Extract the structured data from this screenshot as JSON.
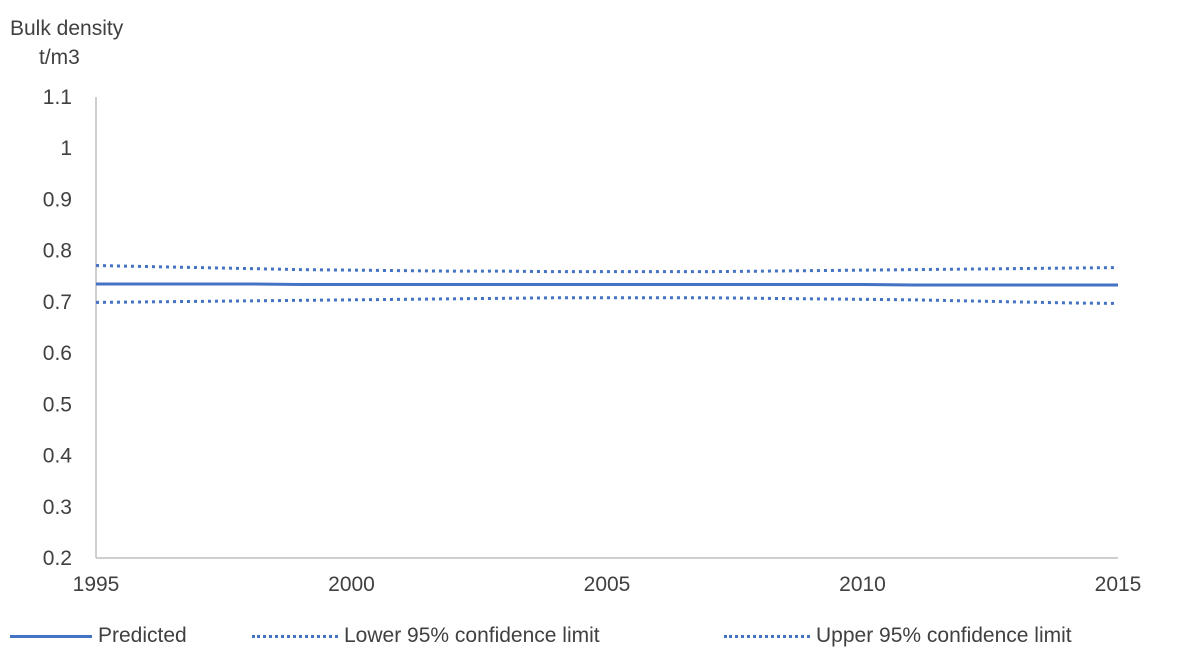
{
  "chart_data": {
    "type": "line",
    "ylabel": [
      "Bulk density",
      "t/m3"
    ],
    "xlabel": "",
    "x": [
      1995,
      1996,
      1997,
      1998,
      1999,
      2000,
      2001,
      2002,
      2003,
      2004,
      2005,
      2006,
      2007,
      2008,
      2009,
      2010,
      2011,
      2012,
      2013,
      2014,
      2015
    ],
    "x_ticks": [
      "1995",
      "2000",
      "2005",
      "2010",
      "2015"
    ],
    "xlim": [
      1995,
      2015
    ],
    "ylim": [
      0.2,
      1.1
    ],
    "y_ticks": [
      "0.2",
      "0.3",
      "0.4",
      "0.5",
      "0.6",
      "0.7",
      "0.8",
      "0.9",
      "1",
      "1.1"
    ],
    "grid": false,
    "legend_position": "bottom",
    "series": [
      {
        "name": "Predicted",
        "style": "solid",
        "color": "#4472c4",
        "values": [
          0.735,
          0.735,
          0.735,
          0.735,
          0.734,
          0.734,
          0.734,
          0.734,
          0.734,
          0.734,
          0.734,
          0.734,
          0.734,
          0.734,
          0.734,
          0.734,
          0.733,
          0.733,
          0.733,
          0.733,
          0.733
        ]
      },
      {
        "name": "Lower 95% confidence limit",
        "style": "dotted",
        "color": "#4472c4",
        "values": [
          0.699,
          0.7,
          0.701,
          0.702,
          0.703,
          0.704,
          0.705,
          0.706,
          0.707,
          0.708,
          0.708,
          0.708,
          0.708,
          0.707,
          0.706,
          0.705,
          0.704,
          0.702,
          0.7,
          0.698,
          0.697
        ]
      },
      {
        "name": "Upper 95% confidence limit",
        "style": "dotted",
        "color": "#4472c4",
        "values": [
          0.771,
          0.769,
          0.767,
          0.765,
          0.763,
          0.762,
          0.761,
          0.76,
          0.76,
          0.759,
          0.759,
          0.759,
          0.759,
          0.76,
          0.761,
          0.762,
          0.763,
          0.764,
          0.765,
          0.766,
          0.767
        ]
      }
    ]
  }
}
